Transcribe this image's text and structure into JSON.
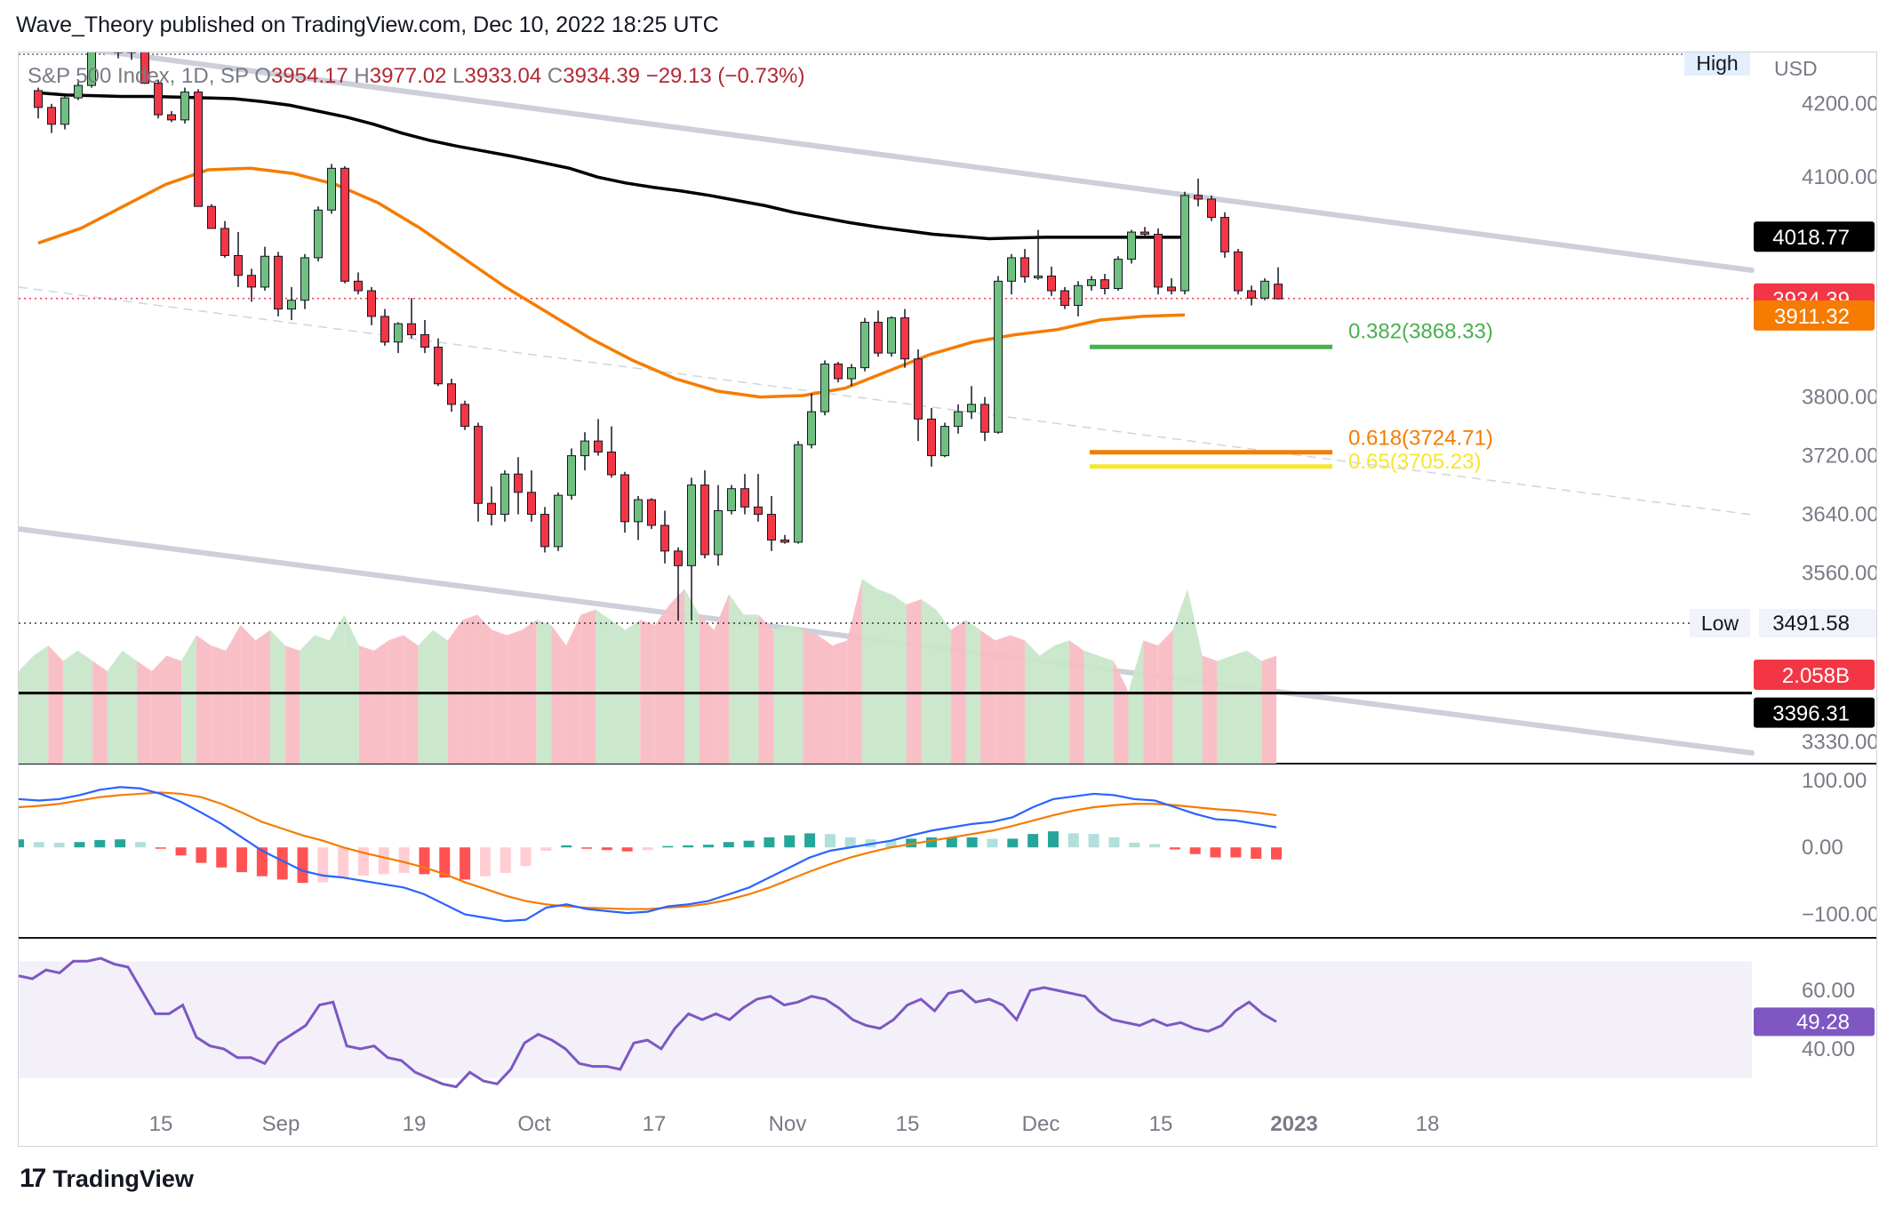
{
  "header": {
    "publisher_line": "Wave_Theory published on TradingView.com, Dec 10, 2022 18:25 UTC"
  },
  "footer": {
    "brand": "TradingView",
    "logo_glyph": "17"
  },
  "legend": {
    "symbol": "S&P 500 Index, 1D, SP",
    "o_label": "O",
    "o_value": "3954.17",
    "h_label": "H",
    "h_value": "3977.02",
    "l_label": "L",
    "l_value": "3933.04",
    "c_label": "C",
    "c_value": "3934.39",
    "change": "−29.13 (−0.73%)"
  },
  "colors": {
    "up": "#26a69a",
    "up_candle": "#6fbf7f",
    "down_candle": "#f23645",
    "ma200": "#000000",
    "ma50": "#f57c00",
    "channel": "#cdd0da",
    "vol_up": "#c8e6c9",
    "vol_down": "#f9bcc4",
    "macd": "#2962ff",
    "signal": "#f57c00",
    "rsi": "#7e57c2",
    "rsi_band": "#f3f0fa"
  },
  "chart_data": [
    {
      "type": "candlestick",
      "title": "S&P 500 Index, 1D, SP",
      "currency": "USD",
      "y_range": [
        3300,
        4270
      ],
      "x_range": [
        0,
        120
      ],
      "x_ticks": [
        {
          "i": 4,
          "label": "15"
        },
        {
          "i": 13,
          "label": "Sep"
        },
        {
          "i": 23,
          "label": "19"
        },
        {
          "i": 32,
          "label": "Oct"
        },
        {
          "i": 41,
          "label": "17"
        },
        {
          "i": 51,
          "label": "Nov"
        },
        {
          "i": 60,
          "label": "15"
        },
        {
          "i": 70,
          "label": "Dec"
        },
        {
          "i": 79,
          "label": "15"
        },
        {
          "i": 89,
          "label": "2023"
        },
        {
          "i": 99,
          "label": "18"
        }
      ],
      "y_ticks": [
        3330,
        3560,
        3640,
        3720,
        3800,
        4100,
        4200
      ],
      "y_ticks_labels": [
        "3330.00",
        "3560.00",
        "3640.00",
        "3720.00",
        "3800.00",
        "4100.00",
        "4200.00"
      ],
      "candles": [
        [
          4218,
          4222,
          4180,
          4195
        ],
        [
          4195,
          4200,
          4160,
          4172
        ],
        [
          4172,
          4210,
          4165,
          4208
        ],
        [
          4208,
          4230,
          4205,
          4225
        ],
        [
          4225,
          4290,
          4222,
          4280
        ],
        [
          4280,
          4300,
          4270,
          4288
        ],
        [
          4288,
          4298,
          4262,
          4270
        ],
        [
          4270,
          4290,
          4260,
          4280
        ],
        [
          4274,
          4280,
          4227,
          4228
        ],
        [
          4228,
          4233,
          4180,
          4185
        ],
        [
          4185,
          4190,
          4175,
          4178
        ],
        [
          4178,
          4222,
          4173,
          4216
        ],
        [
          4216,
          4220,
          4060,
          4060
        ],
        [
          4060,
          4063,
          4030,
          4030
        ],
        [
          4030,
          4040,
          3990,
          3993
        ],
        [
          3993,
          4025,
          3950,
          3966
        ],
        [
          3966,
          3975,
          3930,
          3950
        ],
        [
          3950,
          4005,
          3945,
          3992
        ],
        [
          3992,
          3998,
          3910,
          3920
        ],
        [
          3920,
          3950,
          3905,
          3932
        ],
        [
          3932,
          3995,
          3920,
          3990
        ],
        [
          3990,
          4060,
          3985,
          4055
        ],
        [
          4055,
          4118,
          4050,
          4112
        ],
        [
          4112,
          4115,
          3955,
          3958
        ],
        [
          3958,
          3970,
          3940,
          3945
        ],
        [
          3945,
          3950,
          3898,
          3910
        ],
        [
          3910,
          3920,
          3870,
          3875
        ],
        [
          3875,
          3902,
          3860,
          3900
        ],
        [
          3900,
          3935,
          3880,
          3885
        ],
        [
          3885,
          3905,
          3860,
          3868
        ],
        [
          3868,
          3880,
          3815,
          3818
        ],
        [
          3818,
          3825,
          3780,
          3790
        ],
        [
          3790,
          3795,
          3755,
          3760
        ],
        [
          3760,
          3765,
          3630,
          3655
        ],
        [
          3655,
          3678,
          3625,
          3640
        ],
        [
          3640,
          3700,
          3630,
          3695
        ],
        [
          3695,
          3718,
          3640,
          3670
        ],
        [
          3670,
          3700,
          3630,
          3640
        ],
        [
          3640,
          3650,
          3588,
          3596
        ],
        [
          3596,
          3670,
          3590,
          3666
        ],
        [
          3666,
          3730,
          3660,
          3720
        ],
        [
          3720,
          3752,
          3700,
          3740
        ],
        [
          3740,
          3770,
          3720,
          3725
        ],
        [
          3725,
          3760,
          3690,
          3694
        ],
        [
          3694,
          3698,
          3615,
          3630
        ],
        [
          3630,
          3665,
          3605,
          3660
        ],
        [
          3660,
          3662,
          3620,
          3625
        ],
        [
          3625,
          3645,
          3573,
          3590
        ],
        [
          3590,
          3595,
          3495,
          3570
        ],
        [
          3570,
          3690,
          3495,
          3680
        ],
        [
          3680,
          3700,
          3580,
          3585
        ],
        [
          3585,
          3680,
          3570,
          3645
        ],
        [
          3645,
          3680,
          3640,
          3675
        ],
        [
          3675,
          3695,
          3640,
          3650
        ],
        [
          3650,
          3695,
          3630,
          3640
        ],
        [
          3640,
          3665,
          3590,
          3605
        ],
        [
          3605,
          3612,
          3600,
          3602
        ],
        [
          3602,
          3740,
          3600,
          3735
        ],
        [
          3735,
          3805,
          3730,
          3780
        ],
        [
          3780,
          3850,
          3775,
          3845
        ],
        [
          3845,
          3848,
          3820,
          3825
        ],
        [
          3825,
          3845,
          3815,
          3840
        ],
        [
          3840,
          3908,
          3835,
          3902
        ],
        [
          3902,
          3918,
          3855,
          3860
        ],
        [
          3860,
          3910,
          3855,
          3908
        ],
        [
          3908,
          3920,
          3840,
          3852
        ],
        [
          3852,
          3865,
          3740,
          3770
        ],
        [
          3770,
          3785,
          3705,
          3720
        ],
        [
          3720,
          3765,
          3718,
          3760
        ],
        [
          3760,
          3790,
          3750,
          3780
        ],
        [
          3780,
          3815,
          3770,
          3790
        ],
        [
          3790,
          3800,
          3740,
          3752
        ],
        [
          3752,
          3965,
          3750,
          3958
        ],
        [
          3958,
          3995,
          3940,
          3990
        ],
        [
          3990,
          4002,
          3956,
          3964
        ],
        [
          3964,
          4028,
          3960,
          3965
        ],
        [
          3965,
          3978,
          3938,
          3945
        ],
        [
          3945,
          3950,
          3920,
          3925
        ],
        [
          3925,
          3958,
          3910,
          3952
        ],
        [
          3952,
          3965,
          3945,
          3960
        ],
        [
          3960,
          3968,
          3940,
          3948
        ],
        [
          3948,
          3992,
          3945,
          3988
        ],
        [
          3988,
          4028,
          3982,
          4025
        ],
        [
          4025,
          4032,
          4018,
          4022
        ],
        [
          4022,
          4030,
          3940,
          3950
        ],
        [
          3950,
          3962,
          3940,
          3945
        ],
        [
          3945,
          4080,
          3940,
          4075
        ],
        [
          4075,
          4098,
          4060,
          4070
        ],
        [
          4070,
          4075,
          4040,
          4045
        ],
        [
          4045,
          4052,
          3990,
          3998
        ],
        [
          3998,
          4002,
          3940,
          3945
        ],
        [
          3945,
          3952,
          3925,
          3935
        ],
        [
          3935,
          3962,
          3932,
          3958
        ],
        [
          3954,
          3977,
          3933,
          3934
        ]
      ],
      "ma200": [
        4215,
        4212,
        4211,
        4210,
        4210,
        4209,
        4208,
        4207,
        4203,
        4198,
        4190,
        4182,
        4172,
        4160,
        4150,
        4142,
        4135,
        4128,
        4120,
        4112,
        4100,
        4092,
        4086,
        4081,
        4075,
        4068,
        4061,
        4052,
        4045,
        4038,
        4032,
        4027,
        4022,
        4019,
        4016,
        4017,
        4018,
        4018,
        4018,
        4018,
        4018,
        4018
      ],
      "ma50": [
        4010,
        4030,
        4060,
        4090,
        4110,
        4112,
        4105,
        4090,
        4065,
        4030,
        3990,
        3950,
        3915,
        3880,
        3850,
        3825,
        3808,
        3800,
        3802,
        3812,
        3835,
        3858,
        3875,
        3885,
        3892,
        3905,
        3910,
        3912
      ],
      "fib_levels": [
        {
          "label": "0.382(3868.33)",
          "value": 3868.33,
          "color": "#4caf50"
        },
        {
          "label": "0.618(3724.71)",
          "value": 3724.71,
          "color": "#f57c00"
        },
        {
          "label": "0.65(3705.23)",
          "value": 3705.23,
          "color": "#f7e62e"
        }
      ],
      "horizontal_line": {
        "value": 3396.31,
        "label": "3396.31"
      },
      "high_label": "High",
      "low_label": "Low",
      "low_value": "3491.58",
      "price_tags": [
        {
          "label": "4018.77",
          "value": 4018.77,
          "bg": "#000000",
          "fg": "#ffffff"
        },
        {
          "label": "3934.39",
          "value": 3934.39,
          "bg": "#f23645",
          "fg": "#ffffff"
        },
        {
          "label": "3911.32",
          "value": 3911.32,
          "bg": "#f57c00",
          "fg": "#ffffff"
        },
        {
          "label": "2.058B",
          "value": 3397,
          "bg": "#f23645",
          "fg": "#ffffff",
          "offset": -20
        },
        {
          "label": "3396.31",
          "value": 3396.31,
          "bg": "#000000",
          "fg": "#ffffff",
          "offset": 22
        }
      ]
    },
    {
      "type": "area",
      "title": "Volume",
      "values": [
        1.8,
        2.1,
        2.3,
        2.0,
        2.2,
        2.0,
        1.8,
        2.2,
        2.0,
        1.8,
        2.1,
        2.0,
        2.5,
        2.3,
        2.2,
        2.7,
        2.4,
        2.6,
        2.3,
        2.2,
        2.5,
        2.4,
        2.9,
        2.3,
        2.2,
        2.4,
        2.5,
        2.3,
        2.6,
        2.4,
        2.8,
        2.9,
        2.6,
        2.5,
        2.6,
        2.8,
        2.7,
        2.3,
        2.9,
        3.0,
        2.8,
        2.6,
        2.8,
        2.7,
        3.1,
        3.4,
        2.9,
        2.6,
        3.3,
        2.9,
        2.9,
        2.6,
        2.7,
        2.6,
        2.5,
        2.3,
        2.4,
        3.6,
        3.4,
        3.3,
        3.1,
        3.2,
        3.0,
        2.6,
        2.8,
        2.6,
        2.4,
        2.5,
        2.4,
        2.1,
        2.3,
        2.4,
        2.2,
        2.1,
        2.0,
        1.4,
        2.4,
        2.3,
        2.6,
        3.4,
        2.1,
        2.0,
        2.1,
        2.2,
        2.0,
        2.1
      ],
      "up_flags": [
        1,
        1,
        0,
        1,
        1,
        0,
        1,
        1,
        0,
        0,
        0,
        1,
        0,
        0,
        0,
        0,
        0,
        1,
        0,
        1,
        1,
        1,
        1,
        0,
        0,
        0,
        0,
        1,
        1,
        0,
        0,
        0,
        0,
        0,
        0,
        1,
        0,
        0,
        0,
        1,
        1,
        1,
        0,
        0,
        0,
        1,
        0,
        0,
        1,
        1,
        0,
        1,
        1,
        0,
        0,
        0,
        0,
        1,
        1,
        1,
        0,
        1,
        1,
        0,
        1,
        0,
        0,
        0,
        1,
        1,
        1,
        0,
        1,
        1,
        0,
        1,
        0,
        0,
        1,
        1,
        0,
        1,
        1,
        1,
        0,
        0
      ]
    },
    {
      "type": "line",
      "title": "MACD",
      "y_range": [
        -135,
        125
      ],
      "y_ticks": [
        100,
        0,
        -100
      ],
      "y_ticks_labels": [
        "100.00",
        "0.00",
        "−100.00"
      ],
      "macd": [
        72,
        70,
        72,
        78,
        86,
        90,
        88,
        80,
        68,
        52,
        35,
        15,
        -5,
        -20,
        -35,
        -42,
        -45,
        -50,
        -55,
        -60,
        -70,
        -85,
        -100,
        -105,
        -110,
        -108,
        -90,
        -85,
        -92,
        -95,
        -98,
        -96,
        -88,
        -85,
        -80,
        -70,
        -60,
        -45,
        -30,
        -15,
        -5,
        0,
        5,
        10,
        18,
        25,
        30,
        35,
        38,
        45,
        60,
        72,
        76,
        80,
        78,
        72,
        70,
        60,
        50,
        42,
        40,
        35,
        30
      ],
      "signal": [
        60,
        62,
        65,
        70,
        75,
        78,
        80,
        82,
        80,
        75,
        65,
        52,
        38,
        28,
        18,
        10,
        0,
        -8,
        -15,
        -22,
        -30,
        -40,
        -52,
        -62,
        -72,
        -80,
        -85,
        -88,
        -90,
        -91,
        -92,
        -92,
        -90,
        -88,
        -84,
        -78,
        -70,
        -60,
        -48,
        -36,
        -25,
        -15,
        -7,
        0,
        5,
        10,
        15,
        20,
        25,
        32,
        40,
        48,
        55,
        60,
        63,
        65,
        65,
        63,
        60,
        57,
        55,
        52,
        48
      ],
      "histogram": [
        12,
        8,
        7,
        8,
        11,
        12,
        8,
        -2,
        -12,
        -23,
        -30,
        -37,
        -43,
        -48,
        -53,
        -52,
        -45,
        -42,
        -40,
        -38,
        -40,
        -45,
        -48,
        -43,
        -38,
        -28,
        -5,
        3,
        -2,
        -4,
        -6,
        -4,
        2,
        3,
        4,
        8,
        10,
        15,
        18,
        21,
        20,
        15,
        12,
        10,
        13,
        15,
        15,
        15,
        13,
        13,
        20,
        24,
        21,
        20,
        15,
        7,
        5,
        -3,
        -10,
        -15,
        -15,
        -17,
        -18
      ]
    },
    {
      "type": "line",
      "title": "RSI",
      "y_range": [
        22,
        78
      ],
      "y_ticks": [
        60,
        40
      ],
      "y_ticks_labels": [
        "60.00",
        "40.00"
      ],
      "band": [
        30,
        70
      ],
      "values": [
        65,
        64,
        67,
        66,
        70,
        70,
        71,
        69,
        68,
        60,
        52,
        52,
        55,
        44,
        41,
        40,
        37,
        37,
        35,
        42,
        45,
        48,
        55,
        56,
        41,
        40,
        41,
        37,
        36,
        32,
        30,
        28,
        27,
        32,
        29,
        28,
        33,
        42,
        45,
        43,
        40,
        35,
        34,
        34,
        33,
        42,
        43,
        40,
        47,
        52,
        50,
        52,
        50,
        54,
        57,
        58,
        55,
        56,
        58,
        57,
        54,
        50,
        48,
        47,
        50,
        55,
        57,
        53,
        59,
        60,
        56,
        57,
        55,
        50,
        60,
        61,
        60,
        59,
        58,
        53,
        50,
        49,
        48,
        50,
        48,
        49,
        47,
        46,
        48,
        53,
        56,
        52,
        49.28
      ],
      "current_label": "49.28"
    }
  ]
}
